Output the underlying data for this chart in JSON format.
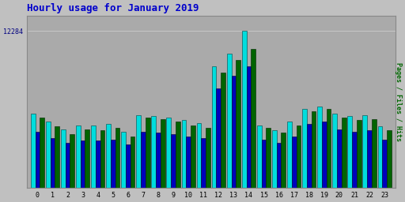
{
  "title": "Hourly usage for January 2019",
  "ylabel": "Pages / Files / Hits",
  "hours": [
    0,
    1,
    2,
    3,
    4,
    5,
    6,
    7,
    8,
    9,
    10,
    11,
    12,
    13,
    14,
    15,
    16,
    17,
    18,
    19,
    20,
    21,
    22,
    23
  ],
  "hits": [
    5800,
    5200,
    4600,
    4900,
    4900,
    5000,
    4400,
    5700,
    5600,
    5500,
    5300,
    5100,
    9500,
    10500,
    12284,
    4900,
    4500,
    5200,
    6200,
    6400,
    5800,
    5600,
    5700,
    4800
  ],
  "files": [
    4400,
    3900,
    3500,
    3700,
    3700,
    3800,
    3400,
    4400,
    4300,
    4200,
    4000,
    3900,
    7800,
    8800,
    9500,
    3800,
    3500,
    4000,
    5000,
    5200,
    4600,
    4400,
    4500,
    3800
  ],
  "pages": [
    5500,
    4800,
    4200,
    4600,
    4500,
    4700,
    4000,
    5500,
    5400,
    5200,
    4900,
    4700,
    9000,
    10000,
    10900,
    4700,
    4300,
    4900,
    6000,
    6200,
    5500,
    5300,
    5400,
    4500
  ],
  "color_hits": "#00DDDD",
  "color_files": "#0000BB",
  "color_pages": "#006400",
  "background_color": "#C0C0C0",
  "plot_bg_color": "#AAAAAA",
  "grid_color": "#CCCCCC",
  "title_color": "#0000CC",
  "ylabel_color": "#006400",
  "tick_color": "#000080",
  "ylim_max": 13500,
  "ytick_val": 12284,
  "bar_width": 0.3
}
